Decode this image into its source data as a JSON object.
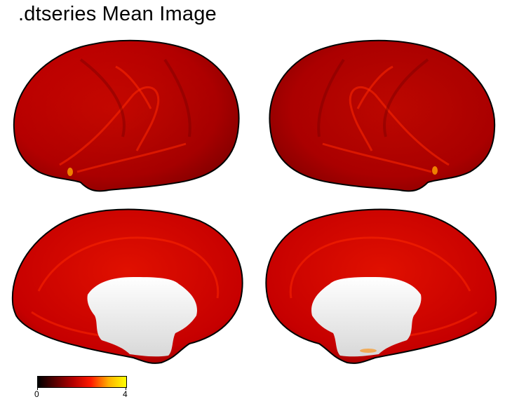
{
  "title": ".dtseries Mean Image",
  "panels": [
    {
      "view": "left-lateral"
    },
    {
      "view": "right-lateral"
    },
    {
      "view": "left-medial"
    },
    {
      "view": "right-medial"
    }
  ],
  "colorbar": {
    "min_label": "0",
    "max_label": "4",
    "colors": [
      "#000000",
      "#5a0000",
      "#b50000",
      "#ff1a00",
      "#ffb000",
      "#ffff00"
    ]
  },
  "colors": {
    "cortex_base": "#c80000",
    "cortex_dark": "#8e0000",
    "cortex_bright": "#f01a00",
    "medial_wall": "#ffffff"
  }
}
